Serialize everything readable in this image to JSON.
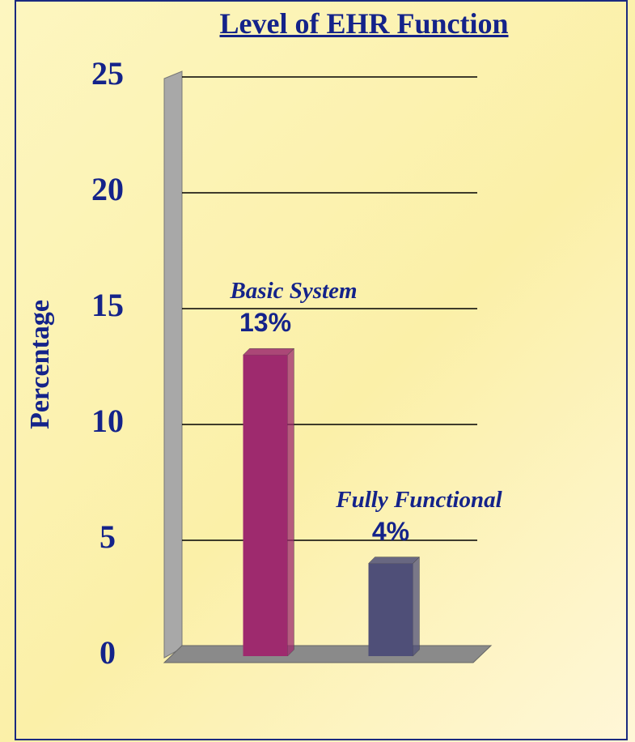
{
  "chart_data": {
    "type": "bar",
    "title": "Level of EHR Function",
    "y_label": "Percentage",
    "categories": [
      "Basic System",
      "Fully Functional"
    ],
    "values": [
      13,
      4
    ],
    "value_labels": [
      "13%",
      "4%"
    ],
    "colors": [
      "#9e2a6e",
      "#4f4f78"
    ],
    "ylim": [
      0,
      25
    ],
    "yticks": [
      0,
      5,
      10,
      15,
      20,
      25
    ],
    "grid": true
  }
}
